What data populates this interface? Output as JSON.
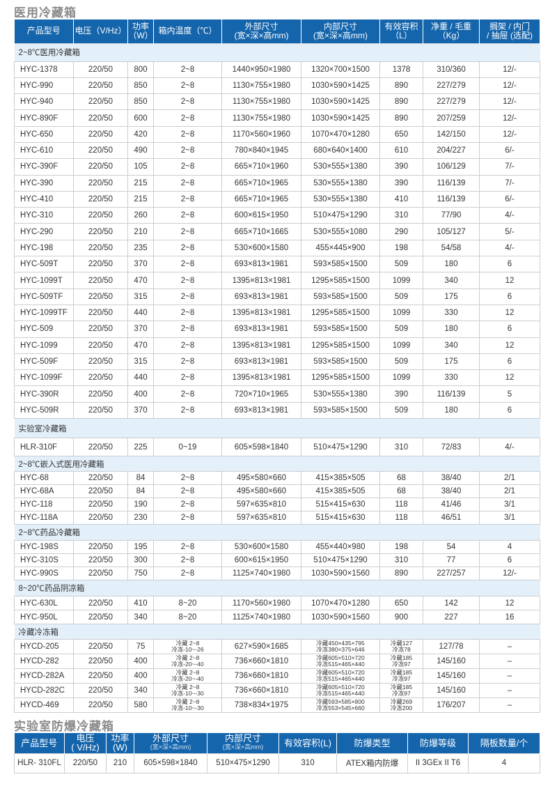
{
  "title1": "医用冷藏箱",
  "headers1": [
    "产品型号",
    "电压（V/Hz）",
    "功率|（W）",
    "箱内温度（℃）",
    "外部尺寸|(宽×深×高mm)",
    "内部尺寸|(宽×深×高mm)",
    "有效容积|（L）",
    "净重 / 毛重|（Kg）",
    "搁架 / 内门|/ 抽屉 (选配)"
  ],
  "sections": [
    {
      "name": "2~8℃医用冷藏箱",
      "rows": [
        [
          "HYC-1378",
          "220/50",
          "800",
          "2~8",
          "1440×950×1980",
          "1320×700×1500",
          "1378",
          "310/360",
          "12/-"
        ],
        [
          "HYC-990",
          "220/50",
          "850",
          "2~8",
          "1130×755×1980",
          "1030×590×1425",
          "890",
          "227/279",
          "12/-"
        ],
        [
          "HYC-940",
          "220/50",
          "850",
          "2~8",
          "1130×755×1980",
          "1030×590×1425",
          "890",
          "227/279",
          "12/-"
        ],
        [
          "HYC-890F",
          "220/50",
          "600",
          "2~8",
          "1130×755×1980",
          "1030×590×1425",
          "890",
          "207/259",
          "12/-"
        ],
        [
          "HYC-650",
          "220/50",
          "420",
          "2~8",
          "1170×560×1960",
          "1070×470×1280",
          "650",
          "142/150",
          "12/-"
        ],
        [
          "HYC-610",
          "220/50",
          "490",
          "2~8",
          "780×840×1945",
          "680×640×1400",
          "610",
          "204/227",
          "6/-"
        ],
        [
          "HYC-390F",
          "220/50",
          "105",
          "2~8",
          "665×710×1960",
          "530×555×1380",
          "390",
          "106/129",
          "7/-"
        ],
        [
          "HYC-390",
          "220/50",
          "215",
          "2~8",
          "665×710×1965",
          "530×555×1380",
          "390",
          "116/139",
          "7/-"
        ],
        [
          "HYC-410",
          "220/50",
          "215",
          "2~8",
          "665×710×1965",
          "530×555×1380",
          "410",
          "116/139",
          "6/-"
        ],
        [
          "HYC-310",
          "220/50",
          "260",
          "2~8",
          "600×615×1950",
          "510×475×1290",
          "310",
          "77/90",
          "4/-"
        ],
        [
          "HYC-290",
          "220/50",
          "210",
          "2~8",
          "665×710×1665",
          "530×555×1080",
          "290",
          "105/127",
          "5/-"
        ],
        [
          "HYC-198",
          "220/50",
          "235",
          "2~8",
          "530×600×1580",
          "455×445×900",
          "198",
          "54/58",
          "4/-"
        ],
        [
          "HYC-509T",
          "220/50",
          "370",
          "2~8",
          "693×813×1981",
          "593×585×1500",
          "509",
          "180",
          "6"
        ],
        [
          "HYC-1099T",
          "220/50",
          "470",
          "2~8",
          "1395×813×1981",
          "1295×585×1500",
          "1099",
          "340",
          "12"
        ],
        [
          "HYC-509TF",
          "220/50",
          "315",
          "2~8",
          "693×813×1981",
          "593×585×1500",
          "509",
          "175",
          "6"
        ],
        [
          "HYC-1099TF",
          "220/50",
          "440",
          "2~8",
          "1395×813×1981",
          "1295×585×1500",
          "1099",
          "330",
          "12"
        ],
        [
          "HYC-509",
          "220/50",
          "370",
          "2~8",
          "693×813×1981",
          "593×585×1500",
          "509",
          "180",
          "6"
        ],
        [
          "HYC-1099",
          "220/50",
          "470",
          "2~8",
          "1395×813×1981",
          "1295×585×1500",
          "1099",
          "340",
          "12"
        ],
        [
          "HYC-509F",
          "220/50",
          "315",
          "2~8",
          "693×813×1981",
          "593×585×1500",
          "509",
          "175",
          "6"
        ],
        [
          "HYC-1099F",
          "220/50",
          "440",
          "2~8",
          "1395×813×1981",
          "1295×585×1500",
          "1099",
          "330",
          "12"
        ],
        [
          "HYC-390R",
          "220/50",
          "400",
          "2~8",
          "720×710×1965",
          "530×555×1380",
          "390",
          "116/139",
          "5"
        ],
        [
          "HYC-509R",
          "220/50",
          "370",
          "2~8",
          "693×813×1981",
          "593×585×1500",
          "509",
          "180",
          "6"
        ]
      ]
    },
    {
      "name": "实验室冷藏箱",
      "rows": [
        [
          "HLR-310F",
          "220/50",
          "225",
          "0~19",
          "605×598×1840",
          "510×475×1290",
          "310",
          "72/83",
          "4/-"
        ]
      ]
    },
    {
      "name": "2~8℃嵌入式医用冷藏箱",
      "rows": [
        [
          "HYC-68",
          "220/50",
          "84",
          "2~8",
          "495×580×660",
          "415×385×505",
          "68",
          "38/40",
          "2/1"
        ],
        [
          "HYC-68A",
          "220/50",
          "84",
          "2~8",
          "495×580×660",
          "415×385×505",
          "68",
          "38/40",
          "2/1"
        ],
        [
          "HYC-118",
          "220/50",
          "190",
          "2~8",
          "597×635×810",
          "515×415×630",
          "118",
          "41/46",
          "3/1"
        ],
        [
          "HYC-118A",
          "220/50",
          "230",
          "2~8",
          "597×635×810",
          "515×415×630",
          "118",
          "46/51",
          "3/1"
        ]
      ]
    },
    {
      "name": "2~8℃药品冷藏箱",
      "rows": [
        [
          "HYC-198S",
          "220/50",
          "195",
          "2~8",
          "530×600×1580",
          "455×440×980",
          "198",
          "54",
          "4"
        ],
        [
          "HYC-310S",
          "220/50",
          "300",
          "2~8",
          "600×615×1950",
          "510×475×1290",
          "310",
          "77",
          "6"
        ],
        [
          "HYC-990S",
          "220/50",
          "750",
          "2~8",
          "1125×740×1980",
          "1030×590×1560",
          "890",
          "227/257",
          "12/-"
        ]
      ]
    },
    {
      "name": "8~20℃药品阴凉箱",
      "rows": [
        [
          "HYC-630L",
          "220/50",
          "410",
          "8~20",
          "1170×560×1980",
          "1070×470×1280",
          "650",
          "142",
          "12"
        ],
        [
          "HYC-950L",
          "220/50",
          "340",
          "8~20",
          "1125×740×1980",
          "1030×590×1560",
          "900",
          "227",
          "16"
        ]
      ]
    },
    {
      "name": "冷藏冷冻箱",
      "rows": [
        [
          "HYCD-205",
          "220/50",
          "75",
          "冷藏 2~8|冷冻-10~-26",
          "627×590×1685",
          "冷藏450×435×795|冷冻380×375×646",
          "冷藏127|冷冻78",
          "127/78",
          "–"
        ],
        [
          "HYCD-282",
          "220/50",
          "400",
          "冷藏 2~8|冷冻-20~-40",
          "736×660×1810",
          "冷藏605×510×720|冷冻515×465×440",
          "冷藏185|冷冻97",
          "145/160",
          "–"
        ],
        [
          "HYCD-282A",
          "220/50",
          "400",
          "冷藏 2~8|冷冻-20~-40",
          "736×660×1810",
          "冷藏605×510×720|冷冻515×465×440",
          "冷藏185|冷冻97",
          "145/160",
          "–"
        ],
        [
          "HYCD-282C",
          "220/50",
          "340",
          "冷藏 2~8|冷冻-10~-30",
          "736×660×1810",
          "冷藏605×510×720|冷冻515×465×440",
          "冷藏185|冷冻97",
          "145/160",
          "–"
        ],
        [
          "HYCD-469",
          "220/50",
          "580",
          "冷藏 2~8|冷冻-10~-30",
          "738×834×1975",
          "冷藏593×585×800|冷冻553×545×660",
          "冷藏269|冷冻200",
          "176/207",
          "–"
        ]
      ]
    }
  ],
  "title2": "实验室防爆冷藏箱",
  "headers2": [
    "产品型号",
    "电压|( V/Hz)",
    "功率|(W)",
    "外部尺寸|(宽×深×高mm)",
    "内部尺寸|(宽×深×高mm)",
    "有效容积(L)",
    "防爆类型",
    "防爆等级",
    "隔板数量/个"
  ],
  "rows2": [
    [
      "HLR- 310FL",
      "220/50",
      "210",
      "605×598×1840",
      "510×475×1290",
      "310",
      "ATEX箱内防爆",
      "II 3GEx II T6",
      "4"
    ]
  ]
}
